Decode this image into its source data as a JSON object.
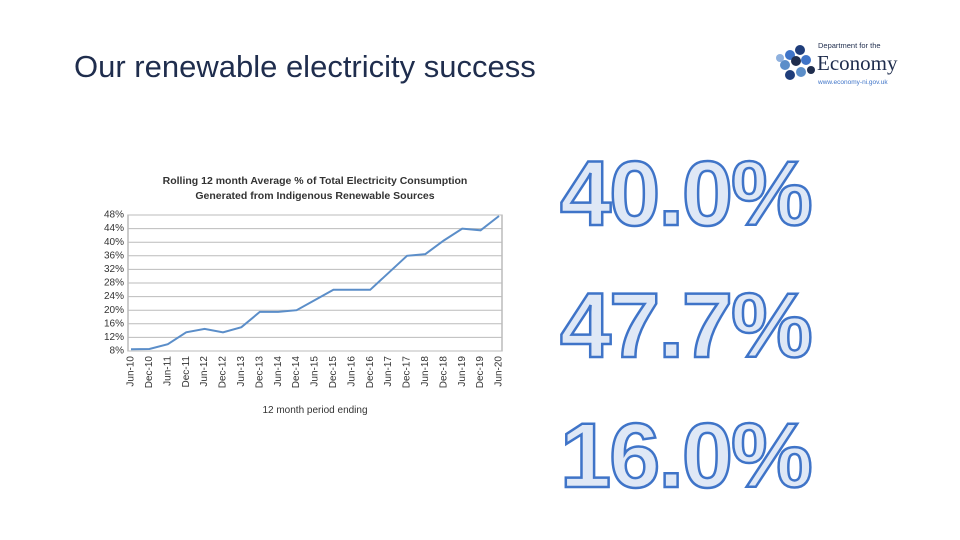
{
  "slide": {
    "title": "Our renewable electricity success",
    "logo": {
      "line1": "Department for the",
      "line2": "Economy",
      "line3": "www.economy-ni.gov.uk"
    },
    "figures": [
      "40.0%",
      "47.7%",
      "16.0%"
    ]
  },
  "chart_data": {
    "type": "line",
    "title": "Rolling 12 month Average % of Total Electricity Consumption",
    "subtitle": "Generated from Indigenous Renewable Sources",
    "x_label": "12 month period ending",
    "categories": [
      "Jun-10",
      "Dec-10",
      "Jun-11",
      "Dec-11",
      "Jun-12",
      "Dec-12",
      "Jun-13",
      "Dec-13",
      "Jun-14",
      "Dec-14",
      "Jun-15",
      "Dec-15",
      "Jun-16",
      "Dec-16",
      "Jun-17",
      "Dec-17",
      "Jun-18",
      "Dec-18",
      "Jun-19",
      "Dec-19",
      "Jun-20"
    ],
    "values": [
      8.5,
      8.6,
      10,
      13.5,
      14.5,
      13.5,
      15,
      19.5,
      19.5,
      20,
      23,
      26,
      26,
      26,
      31,
      36,
      36.5,
      40.5,
      44,
      43.5,
      47.7
    ],
    "color": "#5b8ec9",
    "ylim": [
      8,
      48
    ],
    "yticks": [
      {
        "value": 8,
        "label": "8%"
      },
      {
        "value": 12,
        "label": "12%"
      },
      {
        "value": 16,
        "label": "16%"
      },
      {
        "value": 20,
        "label": "20%"
      },
      {
        "value": 24,
        "label": "24%"
      },
      {
        "value": 28,
        "label": "28%"
      },
      {
        "value": 32,
        "label": "32%"
      },
      {
        "value": 36,
        "label": "36%"
      },
      {
        "value": 40,
        "label": "40%"
      },
      {
        "value": 44,
        "label": "44%"
      },
      {
        "value": 48,
        "label": "48%"
      }
    ],
    "grid": true
  }
}
